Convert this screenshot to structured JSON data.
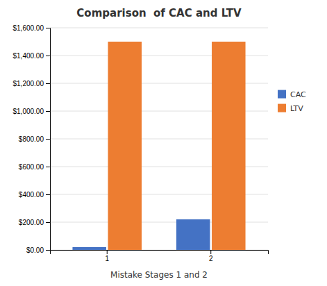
{
  "chart_data": {
    "type": "bar",
    "title": "Comparison  of CAC and LTV",
    "xlabel": "Mistake Stages 1 and 2",
    "categories": [
      "1",
      "2"
    ],
    "series": [
      {
        "name": "CAC",
        "color": "#4472C4",
        "values": [
          20,
          220
        ]
      },
      {
        "name": "LTV",
        "color": "#ED7D31",
        "values": [
          1500,
          1500
        ]
      }
    ],
    "ylim": [
      0,
      1600
    ],
    "yticks": [
      {
        "value": 0,
        "label": "$0.00"
      },
      {
        "value": 200,
        "label": "$200.00"
      },
      {
        "value": 400,
        "label": "$400.00"
      },
      {
        "value": 600,
        "label": "$600.00"
      },
      {
        "value": 800,
        "label": "$800.00"
      },
      {
        "value": 1000,
        "label": "$1,000.00"
      },
      {
        "value": 1200,
        "label": "$1,200.00"
      },
      {
        "value": 1400,
        "label": "$1,400.00"
      },
      {
        "value": 1600,
        "label": "$1,600.00"
      }
    ],
    "grid": true,
    "legend": "right"
  }
}
